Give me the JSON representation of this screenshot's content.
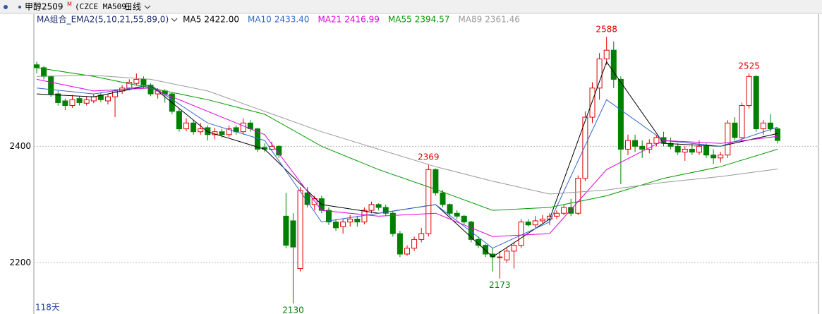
{
  "header": {
    "symbol": "甲醇2509",
    "mark": "M",
    "code": "(CZCE MA509)",
    "period": "日线"
  },
  "chart_data": {
    "type": "candlestick",
    "indicator": "MA组合_EMA2(5,10,21,55,89,0)",
    "ylim": [
      2112,
      2627
    ],
    "yticks": [
      2200,
      2400
    ],
    "grid": true,
    "up_color": "#e00000",
    "down_color": "#008000",
    "days_label": "118天",
    "candles": [
      [
        2540,
        2545,
        2525,
        2535
      ],
      [
        2535,
        2538,
        2515,
        2520
      ],
      [
        2520,
        2522,
        2485,
        2490
      ],
      [
        2490,
        2495,
        2470,
        2475
      ],
      [
        2478,
        2482,
        2462,
        2470
      ],
      [
        2470,
        2488,
        2466,
        2480
      ],
      [
        2482,
        2486,
        2470,
        2475
      ],
      [
        2474,
        2485,
        2470,
        2480
      ],
      [
        2478,
        2490,
        2474,
        2485
      ],
      [
        2488,
        2492,
        2476,
        2480
      ],
      [
        2478,
        2490,
        2472,
        2485
      ],
      [
        2485,
        2498,
        2450,
        2495
      ],
      [
        2495,
        2505,
        2490,
        2500
      ],
      [
        2500,
        2515,
        2496,
        2510
      ],
      [
        2508,
        2525,
        2504,
        2515
      ],
      [
        2515,
        2520,
        2500,
        2505
      ],
      [
        2505,
        2508,
        2486,
        2490
      ],
      [
        2490,
        2500,
        2482,
        2495
      ],
      [
        2495,
        2498,
        2475,
        2490
      ],
      [
        2490,
        2492,
        2455,
        2460
      ],
      [
        2460,
        2465,
        2425,
        2430
      ],
      [
        2430,
        2448,
        2426,
        2440
      ],
      [
        2440,
        2445,
        2420,
        2425
      ],
      [
        2425,
        2440,
        2420,
        2430
      ],
      [
        2432,
        2436,
        2410,
        2420
      ],
      [
        2420,
        2432,
        2412,
        2425
      ],
      [
        2425,
        2430,
        2415,
        2420
      ],
      [
        2420,
        2436,
        2416,
        2430
      ],
      [
        2432,
        2436,
        2420,
        2425
      ],
      [
        2425,
        2448,
        2420,
        2440
      ],
      [
        2440,
        2445,
        2425,
        2430
      ],
      [
        2430,
        2432,
        2390,
        2395
      ],
      [
        2398,
        2405,
        2390,
        2395
      ],
      [
        2395,
        2408,
        2392,
        2400
      ],
      [
        2400,
        2402,
        2380,
        2385
      ],
      [
        2280,
        2320,
        2225,
        2230
      ],
      [
        2272,
        2285,
        2130,
        2227
      ],
      [
        2190,
        2330,
        2185,
        2324
      ],
      [
        2320,
        2330,
        2295,
        2300
      ],
      [
        2300,
        2315,
        2290,
        2310
      ],
      [
        2310,
        2315,
        2285,
        2290
      ],
      [
        2290,
        2295,
        2265,
        2270
      ],
      [
        2270,
        2275,
        2255,
        2260
      ],
      [
        2262,
        2275,
        2250,
        2270
      ],
      [
        2270,
        2282,
        2262,
        2275
      ],
      [
        2275,
        2280,
        2262,
        2270
      ],
      [
        2270,
        2295,
        2266,
        2290
      ],
      [
        2290,
        2305,
        2285,
        2300
      ],
      [
        2300,
        2302,
        2290,
        2295
      ],
      [
        2295,
        2300,
        2280,
        2285
      ],
      [
        2285,
        2288,
        2245,
        2250
      ],
      [
        2250,
        2255,
        2210,
        2215
      ],
      [
        2215,
        2230,
        2212,
        2225
      ],
      [
        2225,
        2245,
        2220,
        2240
      ],
      [
        2240,
        2260,
        2235,
        2250
      ],
      [
        2250,
        2369,
        2245,
        2360
      ],
      [
        2360,
        2362,
        2315,
        2320
      ],
      [
        2320,
        2325,
        2295,
        2300
      ],
      [
        2300,
        2302,
        2280,
        2285
      ],
      [
        2285,
        2290,
        2275,
        2280
      ],
      [
        2280,
        2282,
        2265,
        2270
      ],
      [
        2270,
        2272,
        2235,
        2240
      ],
      [
        2240,
        2245,
        2225,
        2230
      ],
      [
        2230,
        2232,
        2210,
        2215
      ],
      [
        2215,
        2225,
        2185,
        2210
      ],
      [
        2210,
        2220,
        2173,
        2210
      ],
      [
        2205,
        2225,
        2200,
        2220
      ],
      [
        2220,
        2235,
        2190,
        2230
      ],
      [
        2230,
        2275,
        2225,
        2270
      ],
      [
        2270,
        2275,
        2262,
        2265
      ],
      [
        2265,
        2280,
        2260,
        2272
      ],
      [
        2272,
        2282,
        2268,
        2275
      ],
      [
        2275,
        2285,
        2265,
        2280
      ],
      [
        2280,
        2290,
        2275,
        2285
      ],
      [
        2285,
        2300,
        2282,
        2295
      ],
      [
        2295,
        2310,
        2280,
        2285
      ],
      [
        2285,
        2350,
        2282,
        2345
      ],
      [
        2345,
        2460,
        2340,
        2450
      ],
      [
        2450,
        2510,
        2440,
        2500
      ],
      [
        2500,
        2560,
        2480,
        2550
      ],
      [
        2550,
        2588,
        2540,
        2565
      ],
      [
        2565,
        2580,
        2500,
        2515
      ],
      [
        2515,
        2520,
        2335,
        2395
      ],
      [
        2395,
        2420,
        2385,
        2410
      ],
      [
        2410,
        2420,
        2390,
        2400
      ],
      [
        2400,
        2410,
        2380,
        2395
      ],
      [
        2395,
        2412,
        2388,
        2405
      ],
      [
        2405,
        2420,
        2400,
        2415
      ],
      [
        2415,
        2425,
        2400,
        2405
      ],
      [
        2405,
        2415,
        2395,
        2400
      ],
      [
        2400,
        2405,
        2385,
        2390
      ],
      [
        2390,
        2400,
        2375,
        2395
      ],
      [
        2395,
        2405,
        2385,
        2390
      ],
      [
        2390,
        2410,
        2385,
        2400
      ],
      [
        2400,
        2405,
        2380,
        2385
      ],
      [
        2385,
        2395,
        2370,
        2380
      ],
      [
        2380,
        2390,
        2372,
        2385
      ],
      [
        2385,
        2445,
        2380,
        2440
      ],
      [
        2440,
        2450,
        2410,
        2415
      ],
      [
        2415,
        2475,
        2410,
        2470
      ],
      [
        2470,
        2525,
        2465,
        2520
      ],
      [
        2520,
        2522,
        2425,
        2430
      ],
      [
        2430,
        2445,
        2420,
        2440
      ],
      [
        2440,
        2455,
        2425,
        2430
      ],
      [
        2430,
        2432,
        2405,
        2410
      ]
    ],
    "ma_x": [
      0,
      8,
      16,
      24,
      32,
      40,
      48,
      56,
      64,
      72,
      80,
      88,
      96,
      104
    ],
    "series": [
      {
        "name": "MA5",
        "color": "#000000",
        "last": {
          "value": 2422,
          "label": "2422.00"
        },
        "values": [
          2490,
          2485,
          2505,
          2425,
          2395,
          2300,
          2285,
          2300,
          2210,
          2275,
          2545,
          2405,
          2400,
          2422
        ]
      },
      {
        "name": "MA10",
        "color": "#3366cc",
        "last": {
          "value": 2433.4,
          "label": "2433.40"
        },
        "values": [
          2500,
          2490,
          2505,
          2440,
          2410,
          2270,
          2285,
          2300,
          2225,
          2270,
          2480,
          2410,
          2400,
          2433
        ]
      },
      {
        "name": "MA21",
        "color": "#e000e0",
        "last": {
          "value": 2416.99,
          "label": "2416.99"
        },
        "values": [
          2515,
          2495,
          2500,
          2460,
          2420,
          2290,
          2280,
          2285,
          2245,
          2250,
          2360,
          2410,
          2405,
          2417
        ]
      },
      {
        "name": "MA55",
        "color": "#009900",
        "last": {
          "value": 2394.57,
          "label": "2394.57"
        },
        "values": [
          2535,
          2520,
          2500,
          2480,
          2455,
          2400,
          2360,
          2326,
          2290,
          2295,
          2315,
          2345,
          2365,
          2395
        ]
      },
      {
        "name": "MA89",
        "color": "#999999",
        "last": {
          "value": 2361.46,
          "label": "2361.46"
        },
        "values": [
          2520,
          2522,
          2515,
          2495,
          2460,
          2425,
          2395,
          2365,
          2340,
          2318,
          2325,
          2338,
          2348,
          2361
        ]
      }
    ]
  }
}
